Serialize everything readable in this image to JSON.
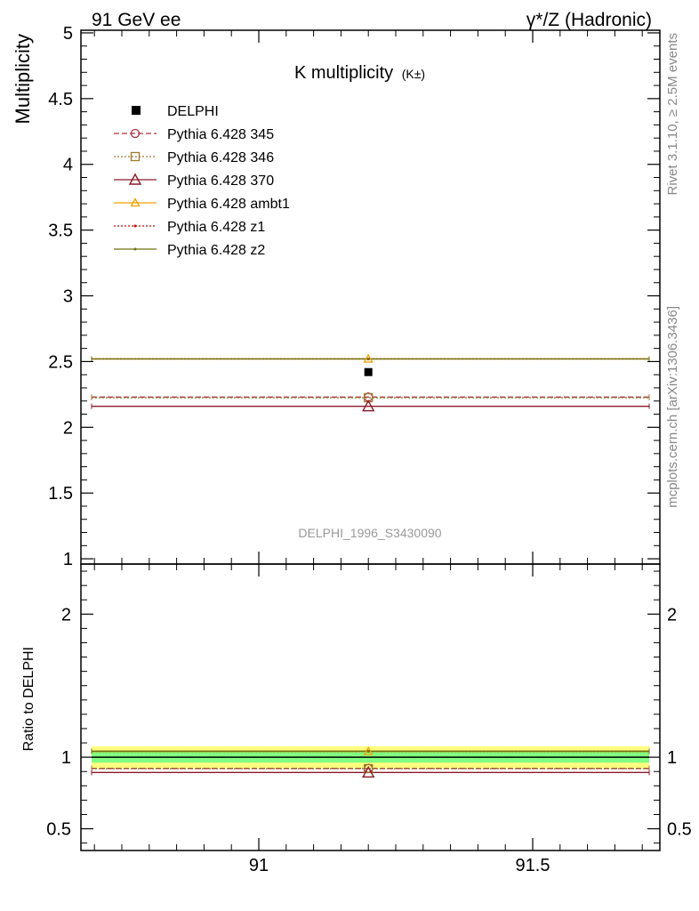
{
  "header": {
    "left": "91 GeV ee",
    "right": "γ*/Z (Hadronic)"
  },
  "side_text": {
    "rivet": "Rivet 3.1.10, ≥ 2.5M events",
    "mcplots": "mcplots.cern.ch [arXiv:1306.3436]"
  },
  "chart_data": [
    {
      "type": "line",
      "title": "K multiplicity",
      "title_suffix": "(K±)",
      "ylabel": "Multiplicity",
      "xlim": [
        90.67,
        91.73
      ],
      "ylim": [
        0.96,
        5.02
      ],
      "yticks": [
        "1",
        "1.5",
        "2",
        "2.5",
        "3",
        "3.5",
        "4",
        "4.5",
        "5"
      ],
      "analysis_label": "DELPHI_1996_S3430090",
      "legend_position": "top-left",
      "data": {
        "name": "DELPHI",
        "x": 91.2,
        "y": 2.42,
        "color": "#000000"
      },
      "series": [
        {
          "name": "Pythia 6.428 345",
          "x": [
            90.67,
            91.73
          ],
          "y": [
            2.23,
            2.23
          ],
          "marker_x": 91.2,
          "marker_y": 2.23,
          "color": "#b03040",
          "style": "dashed",
          "marker": "circle"
        },
        {
          "name": "Pythia 6.428 346",
          "x": [
            90.67,
            91.73
          ],
          "y": [
            2.225,
            2.225
          ],
          "marker_x": 91.2,
          "marker_y": 2.225,
          "color": "#9a7a30",
          "style": "dotted",
          "marker": "square"
        },
        {
          "name": "Pythia 6.428 370",
          "x": [
            90.67,
            91.73
          ],
          "y": [
            2.16,
            2.16
          ],
          "marker_x": 91.2,
          "marker_y": 2.16,
          "color": "#8a1a2a",
          "style": "solid",
          "marker": "triangle-big"
        },
        {
          "name": "Pythia 6.428 ambt1",
          "x": [
            90.67,
            91.73
          ],
          "y": [
            2.52,
            2.52
          ],
          "marker_x": 91.2,
          "marker_y": 2.52,
          "color": "#f0a000",
          "style": "solid",
          "marker": "triangle"
        },
        {
          "name": "Pythia 6.428 z1",
          "x": [
            90.67,
            91.73
          ],
          "y": [
            2.52,
            2.52
          ],
          "marker_x": 91.2,
          "marker_y": 2.52,
          "color": "#c01010",
          "style": "dotted",
          "marker": "dot"
        },
        {
          "name": "Pythia 6.428 z2",
          "x": [
            90.67,
            91.73
          ],
          "y": [
            2.52,
            2.52
          ],
          "marker_x": 91.2,
          "marker_y": 2.52,
          "color": "#707010",
          "style": "solid",
          "marker": "dot"
        }
      ]
    },
    {
      "type": "line",
      "ylabel": "Ratio to DELPHI",
      "xlim": [
        90.67,
        91.73
      ],
      "ylim": [
        0.348,
        2.35
      ],
      "yticks": [
        "0.5",
        "1",
        "2"
      ],
      "xticks": [
        "91",
        "91.5"
      ],
      "bands": [
        {
          "name": "total uncertainty",
          "low": 0.923,
          "high": 1.077,
          "color": "#ffff80"
        },
        {
          "name": "statistical uncertainty",
          "low": 0.962,
          "high": 1.038,
          "color": "#80ff80"
        }
      ],
      "reference": 1.0,
      "series": [
        {
          "name": "Pythia 6.428 345",
          "y": 0.922,
          "color": "#b03040",
          "style": "dashed",
          "marker": "circle"
        },
        {
          "name": "Pythia 6.428 346",
          "y": 0.92,
          "color": "#9a7a30",
          "style": "dotted",
          "marker": "square"
        },
        {
          "name": "Pythia 6.428 370",
          "y": 0.893,
          "color": "#8a1a2a",
          "style": "solid",
          "marker": "triangle-big"
        },
        {
          "name": "Pythia 6.428 ambt1",
          "y": 1.04,
          "color": "#f0a000",
          "style": "solid",
          "marker": "triangle"
        },
        {
          "name": "Pythia 6.428 z1",
          "y": 1.041,
          "color": "#c01010",
          "style": "dotted",
          "marker": "dot"
        },
        {
          "name": "Pythia 6.428 z2",
          "y": 1.042,
          "color": "#707010",
          "style": "solid",
          "marker": "dot"
        }
      ]
    }
  ]
}
